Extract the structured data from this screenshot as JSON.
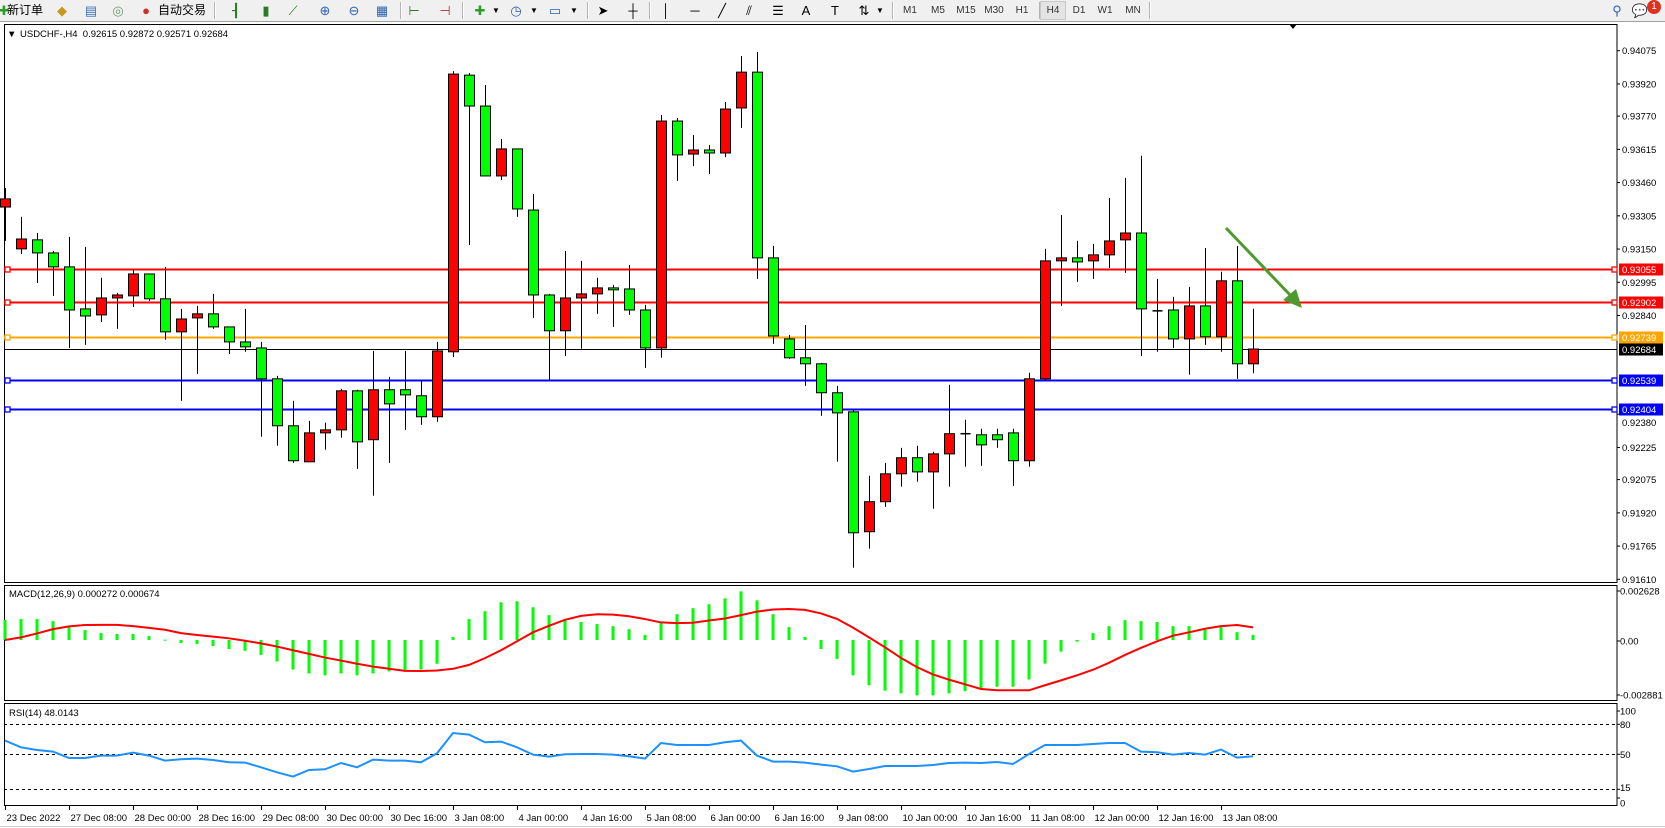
{
  "toolbar": {
    "new_order_label": "新订单",
    "auto_trading_label": "自动交易",
    "timeframes": [
      "M1",
      "M5",
      "M15",
      "M30",
      "H1",
      "H4",
      "D1",
      "W1",
      "MN"
    ],
    "active_timeframe": "H4",
    "notification_count": "1",
    "icons": [
      "new-order-icon",
      "market-watch-icon",
      "data-window-icon",
      "signals-icon",
      "auto-trading-icon",
      "bar-chart-icon",
      "candlestick-icon",
      "line-chart-icon",
      "zoom-in-icon",
      "zoom-out-icon",
      "tile-windows-icon",
      "auto-scroll-icon",
      "chart-shift-icon",
      "indicators-icon",
      "periods-icon",
      "templates-icon",
      "cursor-icon",
      "crosshair-icon",
      "vertical-line-icon",
      "horizontal-line-icon",
      "trendline-icon",
      "equidistant-channel-icon",
      "fibonacci-icon",
      "text-icon",
      "text-label-icon",
      "arrows-icon",
      "search-icon",
      "chat-icon"
    ]
  },
  "chart_data": [
    {
      "type": "candlestick",
      "title": "USDCHF-,H4  0.92615 0.92872 0.92571 0.92684",
      "symbol": "USDCHF-",
      "timeframe": "H4",
      "up_color": "#ff0000",
      "down_color": "#00ff00",
      "fields": [
        "open",
        "high",
        "low",
        "close"
      ],
      "candles": [
        [
          0.93346,
          0.93435,
          0.93188,
          0.93384
        ],
        [
          0.93151,
          0.933,
          0.93127,
          0.93197
        ],
        [
          0.93193,
          0.93225,
          0.92992,
          0.93132
        ],
        [
          0.93132,
          0.93141,
          0.92932,
          0.93067
        ],
        [
          0.93067,
          0.93207,
          0.92689,
          0.92866
        ],
        [
          0.92871,
          0.9316,
          0.92703,
          0.92838
        ],
        [
          0.92843,
          0.93016,
          0.9281,
          0.92922
        ],
        [
          0.92922,
          0.92946,
          0.92778,
          0.92936
        ],
        [
          0.92932,
          0.93057,
          0.9288,
          0.93034
        ],
        [
          0.93034,
          0.93034,
          0.92908,
          0.92918
        ],
        [
          0.92918,
          0.93067,
          0.92727,
          0.92764
        ],
        [
          0.92764,
          0.92871,
          0.92442,
          0.92824
        ],
        [
          0.92829,
          0.92885,
          0.92568,
          0.92848
        ],
        [
          0.92848,
          0.92941,
          0.92778,
          0.92787
        ],
        [
          0.92787,
          0.92787,
          0.92661,
          0.92717
        ],
        [
          0.92717,
          0.92871,
          0.92671,
          0.92694
        ],
        [
          0.92689,
          0.92717,
          0.92275,
          0.92545
        ],
        [
          0.92545,
          0.92559,
          0.92233,
          0.92326
        ],
        [
          0.92326,
          0.92442,
          0.92153,
          0.92163
        ],
        [
          0.92158,
          0.92349,
          0.92158,
          0.92293
        ],
        [
          0.92293,
          0.9234,
          0.92214,
          0.92307
        ],
        [
          0.92307,
          0.92498,
          0.9227,
          0.92489
        ],
        [
          0.92489,
          0.92494,
          0.92125,
          0.92251
        ],
        [
          0.92261,
          0.92675,
          0.92,
          0.92494
        ],
        [
          0.92494,
          0.92554,
          0.92153,
          0.92428
        ],
        [
          0.92494,
          0.92675,
          0.92307,
          0.9247
        ],
        [
          0.92466,
          0.9254,
          0.9233,
          0.92368
        ],
        [
          0.92368,
          0.92717,
          0.92344,
          0.92675
        ],
        [
          0.92671,
          0.9398,
          0.92647,
          0.93966
        ],
        [
          0.93961,
          0.93971,
          0.93169,
          0.93817
        ],
        [
          0.93817,
          0.93915,
          0.93491,
          0.93491
        ],
        [
          0.93491,
          0.93663,
          0.93472,
          0.93617
        ],
        [
          0.93617,
          0.93617,
          0.933,
          0.93337
        ],
        [
          0.93332,
          0.93407,
          0.92829,
          0.92936
        ],
        [
          0.92936,
          0.92941,
          0.9254,
          0.92769
        ],
        [
          0.92769,
          0.93141,
          0.92652,
          0.92922
        ],
        [
          0.92922,
          0.93095,
          0.92685,
          0.92941
        ],
        [
          0.92941,
          0.93016,
          0.92848,
          0.92969
        ],
        [
          0.92969,
          0.92983,
          0.92787,
          0.9296
        ],
        [
          0.92964,
          0.93076,
          0.92843,
          0.92866
        ],
        [
          0.92866,
          0.9289,
          0.92596,
          0.92689
        ],
        [
          0.92689,
          0.93775,
          0.92643,
          0.93747
        ],
        [
          0.93747,
          0.93761,
          0.93468,
          0.93589
        ],
        [
          0.93593,
          0.93682,
          0.93537,
          0.93612
        ],
        [
          0.93612,
          0.93635,
          0.935,
          0.93598
        ],
        [
          0.93598,
          0.93836,
          0.93579,
          0.93803
        ],
        [
          0.93808,
          0.9405,
          0.93715,
          0.93975
        ],
        [
          0.93975,
          0.94069,
          0.93011,
          0.93109
        ],
        [
          0.93109,
          0.93165,
          0.92708,
          0.92745
        ],
        [
          0.92731,
          0.9275,
          0.92638,
          0.92643
        ],
        [
          0.92643,
          0.92796,
          0.92512,
          0.92615
        ],
        [
          0.92615,
          0.92619,
          0.92372,
          0.9248
        ],
        [
          0.9248,
          0.92512,
          0.92158,
          0.92386
        ],
        [
          0.92391,
          0.924,
          0.91664,
          0.91827
        ],
        [
          0.91832,
          0.92093,
          0.91753,
          0.91972
        ],
        [
          0.91972,
          0.92153,
          0.91948,
          0.92102
        ],
        [
          0.92102,
          0.92223,
          0.92042,
          0.92177
        ],
        [
          0.92177,
          0.92233,
          0.92065,
          0.92111
        ],
        [
          0.92111,
          0.92205,
          0.91939,
          0.92195
        ],
        [
          0.92195,
          0.92517,
          0.92042,
          0.92289
        ],
        [
          0.92289,
          0.92354,
          0.92135,
          0.92289
        ],
        [
          0.92284,
          0.92312,
          0.92139,
          0.92237
        ],
        [
          0.92284,
          0.92312,
          0.92223,
          0.92261
        ],
        [
          0.92293,
          0.92312,
          0.92046,
          0.92163
        ],
        [
          0.92163,
          0.92573,
          0.92135,
          0.92545
        ],
        [
          0.92545,
          0.93151,
          0.92536,
          0.93095
        ],
        [
          0.93095,
          0.93309,
          0.92885,
          0.93109
        ],
        [
          0.93109,
          0.93188,
          0.92997,
          0.9309
        ],
        [
          0.93095,
          0.93174,
          0.93011,
          0.93123
        ],
        [
          0.93123,
          0.93388,
          0.93062,
          0.93188
        ],
        [
          0.93193,
          0.93482,
          0.93039,
          0.93225
        ],
        [
          0.93225,
          0.93585,
          0.92652,
          0.92871
        ],
        [
          0.92862,
          0.93011,
          0.92671,
          0.92862
        ],
        [
          0.92866,
          0.92927,
          0.92689,
          0.92731
        ],
        [
          0.92731,
          0.92974,
          0.92564,
          0.92885
        ],
        [
          0.92885,
          0.93155,
          0.92703,
          0.92741
        ],
        [
          0.92741,
          0.93044,
          0.92671,
          0.93002
        ],
        [
          0.93002,
          0.93165,
          0.92545,
          0.92615
        ],
        [
          0.92615,
          0.92872,
          0.92571,
          0.92684
        ]
      ],
      "y_ticks": [
        "0.94075",
        "0.93920",
        "0.93770",
        "0.93615",
        "0.93460",
        "0.93305",
        "0.93150",
        "0.92995",
        "0.92840",
        "0.92380",
        "0.92225",
        "0.92075",
        "0.91920",
        "0.91765",
        "0.91610"
      ],
      "x_tick_labels": [
        "23 Dec 2022",
        "27 Dec 08:00",
        "28 Dec 00:00",
        "28 Dec 16:00",
        "29 Dec 08:00",
        "30 Dec 00:00",
        "30 Dec 16:00",
        "3 Jan 08:00",
        "4 Jan 00:00",
        "4 Jan 16:00",
        "5 Jan 08:00",
        "6 Jan 00:00",
        "6 Jan 16:00",
        "9 Jan 08:00",
        "10 Jan 00:00",
        "10 Jan 16:00",
        "11 Jan 08:00",
        "12 Jan 00:00",
        "12 Jan 16:00",
        "13 Jan 08:00"
      ],
      "horizontal_lines": [
        {
          "price": 0.93055,
          "label": "0.93055",
          "color": "#ff0000"
        },
        {
          "price": 0.92902,
          "label": "0.92902",
          "color": "#ff0000"
        },
        {
          "price": 0.92739,
          "label": "0.92739",
          "color": "#ffa500"
        },
        {
          "price": 0.92539,
          "label": "0.92539",
          "color": "#0000ff"
        },
        {
          "price": 0.92404,
          "label": "0.92404",
          "color": "#0000ff"
        }
      ],
      "current_price": {
        "price": 0.92684,
        "label": "0.92684",
        "color": "#000000"
      },
      "arrow_annotation_color": "#4e9a2e"
    },
    {
      "type": "bar",
      "title": "MACD(12,26,9) 0.000272 0.000674",
      "histogram_color": "#00ff00",
      "signal_color": "#ff0000",
      "y_ticks": [
        "0.002628",
        "0.00",
        "-0.002881"
      ],
      "histogram": [
        0.00108,
        0.00112,
        0.00112,
        0.00101,
        0.00071,
        0.00053,
        0.00037,
        0.00032,
        0.00032,
        0.00021,
        2e-05,
        -0.00016,
        -0.00021,
        -0.00032,
        -0.00048,
        -0.00058,
        -0.0008,
        -0.00115,
        -0.00158,
        -0.00179,
        -0.00189,
        -0.00179,
        -0.00189,
        -0.00179,
        -0.00168,
        -0.00163,
        -0.00158,
        -0.00127,
        0.00016,
        0.00112,
        0.00154,
        0.00202,
        0.00207,
        0.00175,
        0.00133,
        0.00106,
        0.00096,
        0.00085,
        0.00074,
        0.00058,
        0.00027,
        0.0009,
        0.00138,
        0.0017,
        0.00191,
        0.00223,
        0.0026,
        0.00212,
        0.00138,
        0.00069,
        0.00016,
        -0.00048,
        -0.00101,
        -0.00189,
        -0.00242,
        -0.00271,
        -0.00285,
        -0.00296,
        -0.00296,
        -0.00285,
        -0.00274,
        -0.00264,
        -0.0025,
        -0.0025,
        -0.00211,
        -0.00126,
        -0.00062,
        -9e-05,
        0.00037,
        0.00074,
        0.00106,
        0.00101,
        0.00096,
        0.00074,
        0.00074,
        0.00058,
        0.00069,
        0.00042,
        0.000272
      ],
      "signal": [
        0.0,
        0.00014,
        0.00035,
        0.00058,
        0.00073,
        0.0008,
        0.00081,
        0.00081,
        0.00074,
        0.00065,
        0.00055,
        0.00037,
        0.00027,
        0.00018,
        9e-05,
        -4e-05,
        -0.00018,
        -0.00035,
        -0.00055,
        -0.00074,
        -0.00094,
        -0.0011,
        -0.00127,
        -0.00142,
        -0.00154,
        -0.00165,
        -0.00166,
        -0.00163,
        -0.00154,
        -0.00133,
        -0.00097,
        -0.00055,
        -7e-05,
        0.00041,
        0.00076,
        0.00108,
        0.00129,
        0.00138,
        0.00136,
        0.00127,
        0.00112,
        0.00094,
        0.0009,
        0.00092,
        0.00104,
        0.00115,
        0.00133,
        0.00152,
        0.00163,
        0.00166,
        0.00161,
        0.00142,
        0.00113,
        0.00066,
        0.00014,
        -0.00039,
        -0.00096,
        -0.00145,
        -0.00184,
        -0.00212,
        -0.00237,
        -0.00262,
        -0.00269,
        -0.00269,
        -0.00269,
        -0.00242,
        -0.00216,
        -0.00189,
        -0.00159,
        -0.00122,
        -0.0008,
        -0.00042,
        -7e-05,
        0.00023,
        0.00041,
        0.0006,
        0.00074,
        0.0008,
        0.000674
      ],
      "ylim": [
        -0.002881,
        0.002628
      ]
    },
    {
      "type": "line",
      "title": "RSI(14) 48.0143",
      "line_color": "#1e90ff",
      "levels": [
        80,
        50,
        15
      ],
      "y_ticks": [
        "100",
        "80",
        "50",
        "15",
        "0"
      ],
      "values": [
        63.7,
        57,
        54.3,
        52.7,
        46.3,
        46.3,
        48.7,
        48.7,
        51.7,
        48.7,
        43.7,
        45,
        45.7,
        44.3,
        42,
        41.7,
        37,
        32,
        27.7,
        34.3,
        35,
        41.3,
        37,
        44.7,
        43.7,
        43.7,
        42,
        51,
        71.3,
        69.7,
        62,
        62.7,
        57,
        49.7,
        47.7,
        50,
        50.3,
        50.3,
        49.7,
        48,
        45.7,
        61.3,
        59.3,
        59.3,
        59.3,
        62,
        63.7,
        48.7,
        42.7,
        42.7,
        41.7,
        39.7,
        38,
        32.7,
        35.3,
        38.3,
        38.3,
        38.3,
        39.3,
        41.3,
        41.7,
        41.3,
        42.3,
        40.3,
        50.3,
        59.3,
        59.3,
        59.3,
        60.3,
        61.3,
        61.3,
        52.7,
        52,
        49.7,
        51.3,
        49.7,
        54.7,
        46.7,
        48.01
      ],
      "ylim": [
        0,
        100
      ]
    }
  ]
}
